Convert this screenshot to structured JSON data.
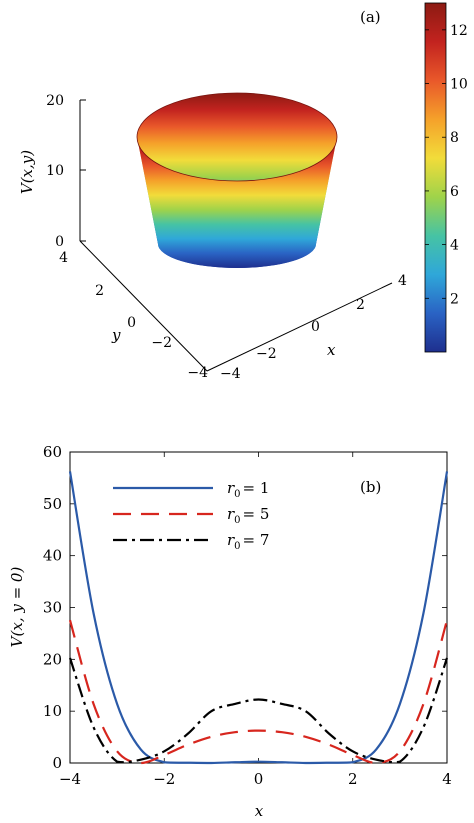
{
  "chart_data": [
    {
      "panel": "(a)",
      "type": "surface3d",
      "zlabel": "V(x,y)",
      "xlabel": "x",
      "ylabel": "y",
      "xlim": [
        -4,
        4
      ],
      "ylim": [
        -4,
        4
      ],
      "zlim": [
        0,
        20
      ],
      "x_ticks": [
        "−4",
        "−2",
        "0",
        "2",
        "4"
      ],
      "y_ticks": [
        "−4",
        "−2",
        "0",
        "2",
        "4"
      ],
      "z_ticks": [
        "0",
        "10",
        "20"
      ],
      "colorbar": {
        "range": [
          0,
          13
        ],
        "ticks": [
          "2",
          "4",
          "6",
          "8",
          "10",
          "12"
        ],
        "colors": [
          "#1e2f8e",
          "#2a63c4",
          "#2fa7d9",
          "#46c3a4",
          "#9fd34a",
          "#f2dc3a",
          "#f5a12a",
          "#e9582a",
          "#c2231f",
          "#8c1a12"
        ]
      },
      "r0": 1
    },
    {
      "panel": "(b)",
      "type": "line",
      "xlabel": "x",
      "ylabel": "V(x, y = 0)",
      "xlim": [
        -4,
        4
      ],
      "ylim": [
        0,
        60
      ],
      "x_ticks": [
        "−4",
        "−2",
        "0",
        "2",
        "4"
      ],
      "y_ticks": [
        "0",
        "10",
        "20",
        "30",
        "40",
        "50",
        "60"
      ],
      "legend_position": "top-left",
      "series": [
        {
          "name_base": "r",
          "name_sub": "0",
          "name_value": "= 1",
          "r0": 1,
          "color": "#2b5aa8",
          "style": "solid",
          "x": [
            -4,
            -3.5,
            -3,
            -2.5,
            -2,
            -1.5,
            -1,
            -0.5,
            0,
            0.5,
            1,
            1.5,
            2,
            2.5,
            3,
            3.5,
            4
          ],
          "y": [
            56.25,
            28.89,
            11.39,
            2.64,
            0.14,
            0.05,
            0,
            0.14,
            0.25,
            0.14,
            0,
            0.05,
            0.14,
            2.64,
            11.39,
            28.89,
            56.25
          ]
        },
        {
          "name_base": "r",
          "name_sub": "0",
          "name_value": "= 5",
          "r0": 5,
          "color": "#d7261e",
          "style": "dashed",
          "x": [
            -4,
            -3.5,
            -3,
            -2.5,
            -2,
            -1.5,
            -1,
            -0.5,
            0,
            0.5,
            1,
            1.5,
            2,
            2.5,
            3,
            3.5,
            4
          ],
          "y": [
            27.56,
            11.39,
            2.25,
            0,
            1.56,
            3.52,
            5.06,
            5.94,
            6.25,
            5.94,
            5.06,
            3.52,
            1.56,
            0,
            2.25,
            11.39,
            27.56
          ]
        },
        {
          "name_base": "r",
          "name_sub": "0",
          "name_value": "= 7",
          "r0": 7,
          "color": "#000000",
          "style": "dashdot",
          "x": [
            -4,
            -3.5,
            -3,
            -2.5,
            -2,
            -1.5,
            -1,
            -0.5,
            0,
            0.5,
            1,
            1.5,
            2,
            2.5,
            3,
            3.5,
            4
          ],
          "y": [
            20.25,
            6.89,
            0.25,
            0.64,
            2.25,
            5.64,
            10.0,
            11.39,
            12.25,
            11.39,
            10.0,
            5.64,
            2.25,
            0.64,
            0.25,
            6.89,
            20.25
          ]
        }
      ]
    }
  ]
}
